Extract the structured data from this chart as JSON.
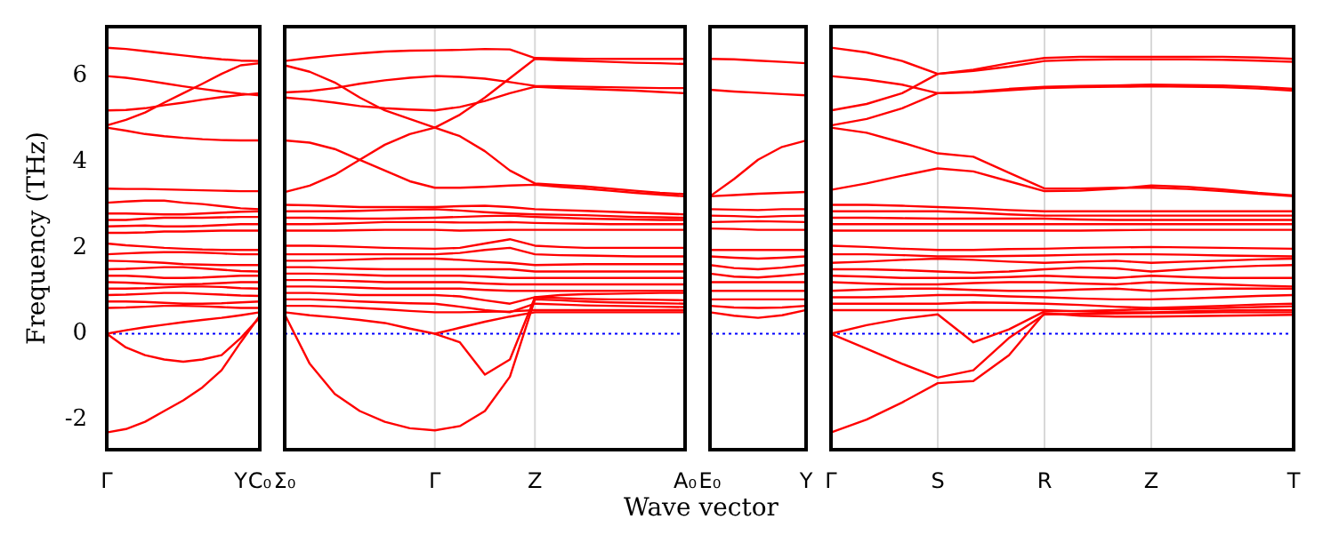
{
  "chart_data": [
    {
      "type": "line",
      "ylabel": "Frequency (THz)",
      "categories": [
        "Γ",
        null,
        null,
        null,
        null,
        null,
        null,
        "Y",
        "C₀"
      ],
      "ylim": [
        -2.7,
        7.15
      ],
      "yticks": [
        -2,
        0,
        2,
        4,
        6
      ],
      "marker": "none",
      "ref_lines": [
        {
          "axis": "y",
          "value": 0,
          "color": "#0000ff",
          "line_style": "dotted"
        }
      ],
      "series": [
        {
          "color": "#ff0000",
          "values": [
            6.66,
            6.63,
            6.58,
            6.53,
            6.48,
            6.43,
            6.39,
            6.36,
            6.35
          ]
        },
        {
          "color": "#ff0000",
          "values": [
            6.0,
            5.96,
            5.9,
            5.83,
            5.76,
            5.7,
            5.64,
            5.59,
            5.55
          ]
        },
        {
          "color": "#ff0000",
          "values": [
            5.2,
            5.21,
            5.25,
            5.32,
            5.38,
            5.45,
            5.51,
            5.56,
            5.6
          ]
        },
        {
          "color": "#ff0000",
          "values": [
            4.85,
            4.98,
            5.15,
            5.38,
            5.6,
            5.82,
            6.05,
            6.25,
            6.3
          ]
        },
        {
          "color": "#ff0000",
          "values": [
            4.8,
            4.73,
            4.65,
            4.6,
            4.56,
            4.53,
            4.51,
            4.5,
            4.5
          ]
        },
        {
          "color": "#ff0000",
          "values": [
            3.38,
            3.37,
            3.37,
            3.36,
            3.35,
            3.34,
            3.33,
            3.32,
            3.32
          ]
        },
        {
          "color": "#ff0000",
          "values": [
            3.05,
            3.08,
            3.1,
            3.1,
            3.05,
            3.02,
            2.97,
            2.92,
            2.9
          ]
        },
        {
          "color": "#ff0000",
          "values": [
            2.8,
            2.8,
            2.79,
            2.78,
            2.78,
            2.8,
            2.82,
            2.84,
            2.85
          ]
        },
        {
          "color": "#ff0000",
          "values": [
            2.65,
            2.65,
            2.68,
            2.7,
            2.7,
            2.7,
            2.71,
            2.72,
            2.72
          ]
        },
        {
          "color": "#ff0000",
          "values": [
            2.5,
            2.51,
            2.52,
            2.5,
            2.5,
            2.51,
            2.53,
            2.55,
            2.55
          ]
        },
        {
          "color": "#ff0000",
          "values": [
            2.35,
            2.35,
            2.36,
            2.38,
            2.38,
            2.39,
            2.4,
            2.4,
            2.4
          ]
        },
        {
          "color": "#ff0000",
          "values": [
            2.1,
            2.06,
            2.03,
            2.0,
            1.98,
            1.96,
            1.95,
            1.95,
            1.95
          ]
        },
        {
          "color": "#ff0000",
          "values": [
            1.85,
            1.87,
            1.89,
            1.9,
            1.9,
            1.89,
            1.87,
            1.85,
            1.85
          ]
        },
        {
          "color": "#ff0000",
          "values": [
            1.7,
            1.69,
            1.67,
            1.65,
            1.62,
            1.61,
            1.6,
            1.6,
            1.6
          ]
        },
        {
          "color": "#ff0000",
          "values": [
            1.5,
            1.51,
            1.53,
            1.55,
            1.55,
            1.52,
            1.49,
            1.46,
            1.45
          ]
        },
        {
          "color": "#ff0000",
          "values": [
            1.35,
            1.35,
            1.33,
            1.3,
            1.3,
            1.31,
            1.33,
            1.35,
            1.35
          ]
        },
        {
          "color": "#ff0000",
          "values": [
            1.2,
            1.19,
            1.17,
            1.15,
            1.15,
            1.16,
            1.18,
            1.2,
            1.2
          ]
        },
        {
          "color": "#ff0000",
          "values": [
            1.05,
            1.05,
            1.06,
            1.08,
            1.1,
            1.1,
            1.09,
            1.06,
            1.05
          ]
        },
        {
          "color": "#ff0000",
          "values": [
            0.9,
            0.91,
            0.93,
            0.95,
            0.95,
            0.93,
            0.91,
            0.89,
            0.88
          ]
        },
        {
          "color": "#ff0000",
          "values": [
            0.75,
            0.75,
            0.74,
            0.72,
            0.7,
            0.7,
            0.71,
            0.73,
            0.75
          ]
        },
        {
          "color": "#ff0000",
          "values": [
            0.6,
            0.61,
            0.63,
            0.65,
            0.65,
            0.64,
            0.62,
            0.6,
            0.6
          ]
        },
        {
          "color": "#ff0000",
          "values": [
            0,
            0.08,
            0.15,
            0.21,
            0.27,
            0.32,
            0.37,
            0.43,
            0.5
          ]
        },
        {
          "color": "#ff0000",
          "values": [
            0,
            -0.32,
            -0.5,
            -0.6,
            -0.65,
            -0.6,
            -0.5,
            -0.1,
            0.38
          ]
        },
        {
          "color": "#ff0000",
          "values": [
            -2.3,
            -2.22,
            -2.05,
            -1.8,
            -1.55,
            -1.25,
            -0.85,
            -0.2,
            0.42
          ]
        }
      ]
    },
    {
      "type": "line",
      "xlabel": "Wave vector",
      "tick_labels": "x",
      "categories": [
        "Σ₀",
        null,
        null,
        null,
        null,
        null,
        "Γ",
        null,
        null,
        null,
        "Z",
        null,
        null,
        null,
        null,
        null,
        "A₀"
      ],
      "ylim": [
        -2.7,
        7.15
      ],
      "yticks": [
        -2,
        0,
        2,
        4,
        6
      ],
      "grid": "x",
      "marker": "none",
      "ref_lines": [
        {
          "axis": "y",
          "value": 0,
          "color": "#0000ff",
          "line_style": "dotted"
        }
      ],
      "series": [
        {
          "color": "#ff0000",
          "values": [
            6.35,
            6.42,
            6.48,
            6.53,
            6.57,
            6.59,
            6.6,
            6.61,
            6.63,
            6.62,
            6.42,
            6.41,
            6.4,
            6.4,
            6.4,
            6.4,
            6.4
          ]
        },
        {
          "color": "#ff0000",
          "values": [
            5.62,
            5.65,
            5.72,
            5.82,
            5.9,
            5.96,
            6.0,
            5.98,
            5.94,
            5.86,
            5.77,
            5.76,
            5.75,
            5.74,
            5.73,
            5.72,
            5.72
          ]
        },
        {
          "color": "#ff0000",
          "values": [
            6.25,
            6.1,
            5.85,
            5.5,
            5.2,
            5.0,
            4.8,
            5.1,
            5.5,
            5.95,
            6.4,
            6.37,
            6.35,
            6.33,
            6.31,
            6.3,
            6.28
          ]
        },
        {
          "color": "#ff0000",
          "values": [
            5.5,
            5.45,
            5.38,
            5.3,
            5.25,
            5.22,
            5.2,
            5.28,
            5.42,
            5.6,
            5.75,
            5.72,
            5.7,
            5.68,
            5.66,
            5.63,
            5.6
          ]
        },
        {
          "color": "#ff0000",
          "values": [
            4.5,
            4.45,
            4.3,
            4.05,
            3.8,
            3.55,
            3.4,
            3.4,
            3.42,
            3.45,
            3.47,
            3.42,
            3.38,
            3.33,
            3.28,
            3.24,
            3.2
          ]
        },
        {
          "color": "#ff0000",
          "values": [
            3.3,
            3.45,
            3.7,
            4.05,
            4.4,
            4.65,
            4.8,
            4.6,
            4.25,
            3.8,
            3.5,
            3.46,
            3.43,
            3.38,
            3.33,
            3.28,
            3.25
          ]
        },
        {
          "color": "#ff0000",
          "values": [
            3.0,
            2.99,
            2.97,
            2.95,
            2.95,
            2.95,
            2.95,
            2.97,
            2.98,
            2.95,
            2.9,
            2.88,
            2.86,
            2.84,
            2.82,
            2.8,
            2.78
          ]
        },
        {
          "color": "#ff0000",
          "values": [
            2.85,
            2.85,
            2.85,
            2.86,
            2.88,
            2.89,
            2.9,
            2.87,
            2.83,
            2.8,
            2.78,
            2.77,
            2.76,
            2.74,
            2.72,
            2.71,
            2.7
          ]
        },
        {
          "color": "#ff0000",
          "values": [
            2.7,
            2.7,
            2.69,
            2.68,
            2.68,
            2.69,
            2.7,
            2.72,
            2.74,
            2.75,
            2.72,
            2.7,
            2.68,
            2.67,
            2.66,
            2.65,
            2.65
          ]
        },
        {
          "color": "#ff0000",
          "values": [
            2.55,
            2.55,
            2.56,
            2.58,
            2.6,
            2.6,
            2.6,
            2.59,
            2.59,
            2.6,
            2.58,
            2.57,
            2.56,
            2.55,
            2.55,
            2.55,
            2.55
          ]
        },
        {
          "color": "#ff0000",
          "values": [
            2.4,
            2.4,
            2.4,
            2.41,
            2.42,
            2.42,
            2.42,
            2.4,
            2.41,
            2.42,
            2.42,
            2.42,
            2.42,
            2.42,
            2.42,
            2.42,
            2.42
          ]
        },
        {
          "color": "#ff0000",
          "values": [
            2.05,
            2.05,
            2.04,
            2.02,
            2.0,
            1.99,
            1.98,
            2.0,
            2.1,
            2.2,
            2.05,
            2.02,
            2.0,
            2.0,
            2.0,
            2.0,
            2.0
          ]
        },
        {
          "color": "#ff0000",
          "values": [
            1.85,
            1.85,
            1.85,
            1.85,
            1.85,
            1.85,
            1.85,
            1.88,
            1.95,
            2.0,
            1.85,
            1.83,
            1.82,
            1.81,
            1.8,
            1.8,
            1.8
          ]
        },
        {
          "color": "#ff0000",
          "values": [
            1.7,
            1.7,
            1.71,
            1.73,
            1.75,
            1.75,
            1.75,
            1.72,
            1.68,
            1.65,
            1.6,
            1.61,
            1.62,
            1.62,
            1.62,
            1.62,
            1.62
          ]
        },
        {
          "color": "#ff0000",
          "values": [
            1.55,
            1.55,
            1.53,
            1.51,
            1.5,
            1.5,
            1.5,
            1.5,
            1.5,
            1.5,
            1.45,
            1.45,
            1.45,
            1.45,
            1.45,
            1.45,
            1.45
          ]
        },
        {
          "color": "#ff0000",
          "values": [
            1.4,
            1.4,
            1.39,
            1.37,
            1.35,
            1.35,
            1.35,
            1.35,
            1.33,
            1.3,
            1.3,
            1.3,
            1.3,
            1.3,
            1.3,
            1.3,
            1.3
          ]
        },
        {
          "color": "#ff0000",
          "values": [
            1.25,
            1.25,
            1.24,
            1.22,
            1.2,
            1.2,
            1.2,
            1.2,
            1.17,
            1.15,
            1.15,
            1.15,
            1.15,
            1.15,
            1.15,
            1.15,
            1.15
          ]
        },
        {
          "color": "#ff0000",
          "values": [
            1.1,
            1.1,
            1.09,
            1.07,
            1.05,
            1.05,
            1.05,
            1.05,
            1.02,
            1.0,
            1.0,
            1.0,
            1.0,
            1.0,
            1.0,
            1.0,
            1.0
          ]
        },
        {
          "color": "#ff0000",
          "values": [
            0.95,
            0.95,
            0.93,
            0.9,
            0.9,
            0.9,
            0.9,
            0.87,
            0.78,
            0.7,
            0.85,
            0.83,
            0.81,
            0.8,
            0.8,
            0.79,
            0.78
          ]
        },
        {
          "color": "#ff0000",
          "values": [
            0.8,
            0.8,
            0.78,
            0.75,
            0.73,
            0.71,
            0.7,
            0.63,
            0.55,
            0.5,
            0.7,
            0.68,
            0.66,
            0.65,
            0.64,
            0.63,
            0.62
          ]
        },
        {
          "color": "#ff0000",
          "values": [
            0.65,
            0.65,
            0.63,
            0.6,
            0.57,
            0.53,
            0.5,
            0.5,
            0.51,
            0.52,
            0.55,
            0.55,
            0.55,
            0.55,
            0.55,
            0.55,
            0.55
          ]
        },
        {
          "color": "#ff0000",
          "values": [
            0.5,
            0.43,
            0.38,
            0.32,
            0.25,
            0.12,
            0,
            0.14,
            0.28,
            0.4,
            0.5,
            0.5,
            0.5,
            0.5,
            0.5,
            0.5,
            0.5
          ]
        },
        {
          "color": "#ff0000",
          "values": [
            0.45,
            -0.7,
            -1.4,
            -1.8,
            -2.05,
            -2.2,
            -2.25,
            -2.15,
            -1.8,
            -1.0,
            0.8,
            0.78,
            0.75,
            0.73,
            0.72,
            0.71,
            0.7
          ]
        },
        {
          "color": "#ff0000",
          "values": [
            null,
            null,
            null,
            null,
            null,
            null,
            0,
            -0.2,
            -0.95,
            -0.6,
            0.85,
            0.9,
            0.92,
            0.93,
            0.94,
            0.95,
            0.95
          ]
        }
      ]
    },
    {
      "type": "line",
      "tick_labels": "x",
      "categories": [
        "E₀",
        null,
        null,
        null,
        "Y"
      ],
      "ylim": [
        -2.7,
        7.15
      ],
      "yticks": [
        -2,
        0,
        2,
        4,
        6
      ],
      "marker": "none",
      "ref_lines": [
        {
          "axis": "y",
          "value": 0,
          "color": "#0000ff",
          "line_style": "dotted"
        }
      ],
      "series": [
        {
          "color": "#ff0000",
          "values": [
            6.4,
            6.39,
            6.36,
            6.33,
            6.3
          ]
        },
        {
          "color": "#ff0000",
          "values": [
            5.68,
            5.64,
            5.61,
            5.58,
            5.55
          ]
        },
        {
          "color": "#ff0000",
          "values": [
            3.2,
            3.6,
            4.05,
            4.35,
            4.5
          ]
        },
        {
          "color": "#ff0000",
          "values": [
            3.2,
            3.23,
            3.26,
            3.28,
            3.3
          ]
        },
        {
          "color": "#ff0000",
          "values": [
            2.9,
            2.89,
            2.88,
            2.9,
            2.9
          ]
        },
        {
          "color": "#ff0000",
          "values": [
            2.75,
            2.74,
            2.72,
            2.74,
            2.75
          ]
        },
        {
          "color": "#ff0000",
          "values": [
            2.6,
            2.61,
            2.62,
            2.61,
            2.6
          ]
        },
        {
          "color": "#ff0000",
          "values": [
            2.45,
            2.44,
            2.42,
            2.42,
            2.42
          ]
        },
        {
          "color": "#ff0000",
          "values": [
            1.95,
            1.95,
            1.95,
            1.95,
            1.95
          ]
        },
        {
          "color": "#ff0000",
          "values": [
            1.8,
            1.77,
            1.75,
            1.77,
            1.8
          ]
        },
        {
          "color": "#ff0000",
          "values": [
            1.6,
            1.53,
            1.5,
            1.54,
            1.6
          ]
        },
        {
          "color": "#ff0000",
          "values": [
            1.4,
            1.33,
            1.31,
            1.35,
            1.4
          ]
        },
        {
          "color": "#ff0000",
          "values": [
            1.2,
            1.2,
            1.2,
            1.2,
            1.2
          ]
        },
        {
          "color": "#ff0000",
          "values": [
            1.0,
            1.0,
            1.0,
            1.0,
            1.0
          ]
        },
        {
          "color": "#ff0000",
          "values": [
            0.8,
            0.8,
            0.8,
            0.8,
            0.8
          ]
        },
        {
          "color": "#ff0000",
          "values": [
            0.65,
            0.61,
            0.6,
            0.61,
            0.65
          ]
        },
        {
          "color": "#ff0000",
          "values": [
            0.5,
            0.42,
            0.37,
            0.43,
            0.55
          ]
        }
      ]
    },
    {
      "type": "line",
      "tick_labels": "x",
      "categories": [
        "Γ",
        null,
        null,
        "S",
        null,
        null,
        "R",
        null,
        null,
        "Z",
        null,
        null,
        null,
        "T"
      ],
      "ylim": [
        -2.7,
        7.15
      ],
      "yticks": [
        -2,
        0,
        2,
        4,
        6
      ],
      "grid": "x",
      "marker": "none",
      "ref_lines": [
        {
          "axis": "y",
          "value": 0,
          "color": "#0000ff",
          "line_style": "dotted"
        }
      ],
      "series": [
        {
          "color": "#ff0000",
          "values": [
            6.66,
            6.55,
            6.35,
            6.05,
            6.15,
            6.3,
            6.42,
            6.45,
            6.45,
            6.45,
            6.45,
            6.45,
            6.43,
            6.4
          ]
        },
        {
          "color": "#ff0000",
          "values": [
            6.0,
            5.92,
            5.8,
            5.6,
            5.63,
            5.7,
            5.75,
            5.77,
            5.78,
            5.8,
            5.79,
            5.78,
            5.75,
            5.7
          ]
        },
        {
          "color": "#ff0000",
          "values": [
            5.2,
            5.35,
            5.6,
            6.05,
            6.12,
            6.22,
            6.35,
            6.38,
            6.39,
            6.39,
            6.39,
            6.38,
            6.36,
            6.33
          ]
        },
        {
          "color": "#ff0000",
          "values": [
            4.85,
            5.0,
            5.25,
            5.6,
            5.62,
            5.67,
            5.72,
            5.74,
            5.75,
            5.76,
            5.75,
            5.74,
            5.71,
            5.66
          ]
        },
        {
          "color": "#ff0000",
          "values": [
            4.8,
            4.68,
            4.45,
            4.2,
            4.12,
            3.75,
            3.38,
            3.38,
            3.4,
            3.4,
            3.37,
            3.32,
            3.26,
            3.2
          ]
        },
        {
          "color": "#ff0000",
          "values": [
            3.35,
            3.5,
            3.68,
            3.85,
            3.78,
            3.55,
            3.32,
            3.33,
            3.38,
            3.45,
            3.42,
            3.36,
            3.28,
            3.22
          ]
        },
        {
          "color": "#ff0000",
          "values": [
            3.0,
            3.0,
            2.98,
            2.95,
            2.92,
            2.88,
            2.85,
            2.85,
            2.85,
            2.85,
            2.85,
            2.85,
            2.85,
            2.85
          ]
        },
        {
          "color": "#ff0000",
          "values": [
            2.85,
            2.85,
            2.85,
            2.85,
            2.82,
            2.78,
            2.75,
            2.75,
            2.75,
            2.75,
            2.75,
            2.75,
            2.75,
            2.75
          ]
        },
        {
          "color": "#ff0000",
          "values": [
            2.7,
            2.7,
            2.69,
            2.68,
            2.68,
            2.68,
            2.68,
            2.66,
            2.65,
            2.65,
            2.65,
            2.65,
            2.65,
            2.65
          ]
        },
        {
          "color": "#ff0000",
          "values": [
            2.55,
            2.55,
            2.55,
            2.55,
            2.55,
            2.55,
            2.55,
            2.55,
            2.55,
            2.55,
            2.55,
            2.55,
            2.55,
            2.55
          ]
        },
        {
          "color": "#ff0000",
          "values": [
            2.4,
            2.4,
            2.4,
            2.4,
            2.4,
            2.4,
            2.4,
            2.4,
            2.41,
            2.42,
            2.42,
            2.42,
            2.42,
            2.42
          ]
        },
        {
          "color": "#ff0000",
          "values": [
            2.05,
            2.02,
            1.98,
            1.95,
            1.95,
            1.97,
            1.98,
            2.0,
            2.01,
            2.02,
            2.01,
            2.0,
            1.99,
            1.98
          ]
        },
        {
          "color": "#ff0000",
          "values": [
            1.85,
            1.85,
            1.83,
            1.8,
            1.8,
            1.81,
            1.82,
            1.84,
            1.85,
            1.85,
            1.84,
            1.82,
            1.81,
            1.8
          ]
        },
        {
          "color": "#ff0000",
          "values": [
            1.65,
            1.68,
            1.72,
            1.75,
            1.72,
            1.68,
            1.65,
            1.68,
            1.7,
            1.65,
            1.68,
            1.7,
            1.73,
            1.75
          ]
        },
        {
          "color": "#ff0000",
          "values": [
            1.5,
            1.5,
            1.48,
            1.45,
            1.42,
            1.45,
            1.5,
            1.54,
            1.52,
            1.45,
            1.5,
            1.55,
            1.58,
            1.6
          ]
        },
        {
          "color": "#ff0000",
          "values": [
            1.35,
            1.33,
            1.3,
            1.3,
            1.3,
            1.32,
            1.35,
            1.32,
            1.3,
            1.35,
            1.32,
            1.3,
            1.3,
            1.3
          ]
        },
        {
          "color": "#ff0000",
          "values": [
            1.2,
            1.17,
            1.15,
            1.15,
            1.18,
            1.2,
            1.2,
            1.17,
            1.15,
            1.2,
            1.17,
            1.15,
            1.12,
            1.1
          ]
        },
        {
          "color": "#ff0000",
          "values": [
            1.0,
            1.03,
            1.05,
            1.05,
            1.02,
            1.0,
            1.0,
            1.03,
            1.05,
            1.0,
            1.03,
            1.05,
            1.05,
            1.05
          ]
        },
        {
          "color": "#ff0000",
          "values": [
            0.85,
            0.85,
            0.87,
            0.9,
            0.9,
            0.87,
            0.85,
            0.82,
            0.8,
            0.8,
            0.82,
            0.85,
            0.88,
            0.9
          ]
        },
        {
          "color": "#ff0000",
          "values": [
            0.7,
            0.7,
            0.7,
            0.7,
            0.73,
            0.72,
            0.7,
            0.67,
            0.63,
            0.6,
            0.62,
            0.65,
            0.68,
            0.7
          ]
        },
        {
          "color": "#ff0000",
          "values": [
            0.55,
            0.55,
            0.55,
            0.55,
            0.55,
            0.55,
            0.55,
            0.52,
            0.5,
            0.5,
            0.52,
            0.54,
            0.55,
            0.55
          ]
        },
        {
          "color": "#ff0000",
          "values": [
            0,
            0.2,
            0.35,
            0.45,
            -0.2,
            0.1,
            0.52,
            0.53,
            0.55,
            0.57,
            0.58,
            0.6,
            0.62,
            0.64
          ]
        },
        {
          "color": "#ff0000",
          "values": [
            0,
            -0.35,
            -0.7,
            -1.02,
            -0.85,
            -0.1,
            0.45,
            0.46,
            0.47,
            0.48,
            0.49,
            0.5,
            0.5,
            0.5
          ]
        },
        {
          "color": "#ff0000",
          "values": [
            -2.3,
            -2.0,
            -1.6,
            -1.15,
            -1.1,
            -0.5,
            0.48,
            0.42,
            0.4,
            0.4,
            0.41,
            0.42,
            0.43,
            0.44
          ]
        }
      ]
    }
  ]
}
